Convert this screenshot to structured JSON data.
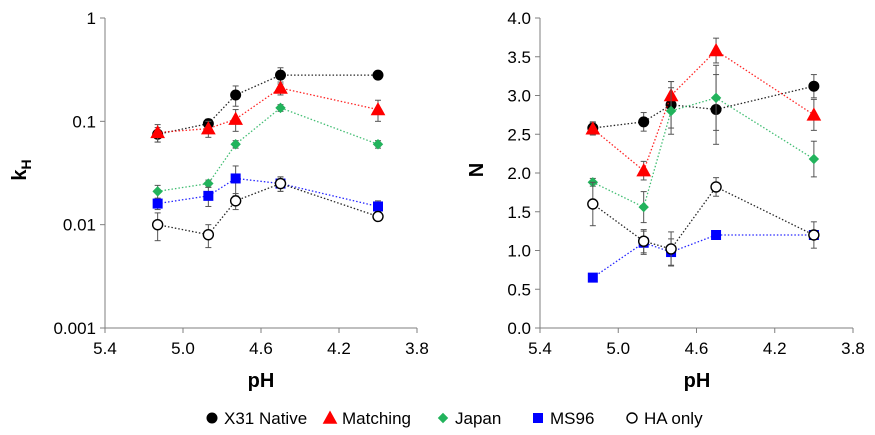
{
  "chart_data": [
    {
      "type": "scatter",
      "title": "",
      "xlabel": "pH",
      "ylabel": "kH",
      "ylabel_main": "k",
      "ylabel_sub": "H",
      "xlim": [
        5.4,
        3.8
      ],
      "x_reversed": true,
      "xticks": [
        "5.4",
        "5.0",
        "4.6",
        "4.2",
        "3.8"
      ],
      "ylim": [
        0.001,
        1
      ],
      "yscale": "log",
      "yticks": [
        "0.001",
        "0.01",
        "0.1",
        "1"
      ],
      "grid": false,
      "series": [
        {
          "name": "X31 Native",
          "color": "#000000",
          "marker": "circle",
          "filled": true,
          "x": [
            5.13,
            4.87,
            4.73,
            4.5,
            4.0
          ],
          "y": [
            0.075,
            0.095,
            0.18,
            0.28,
            0.28
          ],
          "err": [
            0.012,
            0.01,
            0.04,
            0.05,
            0.02
          ]
        },
        {
          "name": "Matching",
          "color": "#ff0000",
          "marker": "triangle",
          "filled": true,
          "x": [
            5.13,
            4.87,
            4.73,
            4.5,
            4.0
          ],
          "y": [
            0.078,
            0.085,
            0.105,
            0.21,
            0.13
          ],
          "err": [
            0.015,
            0.015,
            0.025,
            0.03,
            0.03
          ]
        },
        {
          "name": "Japan",
          "color": "#22b35c",
          "marker": "diamond",
          "filled": true,
          "x": [
            5.13,
            4.87,
            4.73,
            4.5,
            4.0
          ],
          "y": [
            0.021,
            0.025,
            0.06,
            0.135,
            0.06
          ],
          "err": [
            0.003,
            0.002,
            0.005,
            0.01,
            0.005
          ]
        },
        {
          "name": "MS96",
          "color": "#0000ff",
          "marker": "square",
          "filled": true,
          "x": [
            5.13,
            4.87,
            4.73,
            4.5,
            4.0
          ],
          "y": [
            0.016,
            0.019,
            0.028,
            0.025,
            0.015
          ],
          "err": [
            0.002,
            0.004,
            0.009,
            0.004,
            0.002
          ]
        },
        {
          "name": "HA only",
          "color": "#000000",
          "marker": "circle",
          "filled": false,
          "x": [
            5.13,
            4.87,
            4.73,
            4.5,
            4.0
          ],
          "y": [
            0.01,
            0.008,
            0.017,
            0.025,
            0.012
          ],
          "err": [
            0.003,
            0.002,
            0.003,
            0.004,
            0.001
          ]
        }
      ]
    },
    {
      "type": "scatter",
      "title": "",
      "xlabel": "pH",
      "ylabel": "N",
      "xlim": [
        5.4,
        3.8
      ],
      "x_reversed": true,
      "xticks": [
        "5.4",
        "5.0",
        "4.6",
        "4.2",
        "3.8"
      ],
      "ylim": [
        0,
        4
      ],
      "yscale": "linear",
      "yticks": [
        "0.0",
        "0.5",
        "1.0",
        "1.5",
        "2.0",
        "2.5",
        "3.0",
        "3.5",
        "4.0"
      ],
      "grid": false,
      "series": [
        {
          "name": "X31 Native",
          "color": "#000000",
          "marker": "circle",
          "filled": true,
          "x": [
            5.13,
            4.87,
            4.73,
            4.5,
            4.0
          ],
          "y": [
            2.58,
            2.66,
            2.88,
            2.82,
            3.12
          ],
          "err": [
            0.08,
            0.12,
            0.3,
            0.45,
            0.15
          ]
        },
        {
          "name": "Matching",
          "color": "#ff0000",
          "marker": "triangle",
          "filled": true,
          "x": [
            5.13,
            4.87,
            4.73,
            4.5,
            4.0
          ],
          "y": [
            2.57,
            2.03,
            3.0,
            3.58,
            2.75
          ],
          "err": [
            0.08,
            0.12,
            0.18,
            0.16,
            0.2
          ]
        },
        {
          "name": "Japan",
          "color": "#22b35c",
          "marker": "diamond",
          "filled": true,
          "x": [
            5.13,
            4.87,
            4.73,
            4.5,
            4.0
          ],
          "y": [
            1.88,
            1.56,
            2.8,
            2.97,
            2.18
          ],
          "err": [
            0.05,
            0.2,
            0.3,
            0.42,
            0.23
          ]
        },
        {
          "name": "MS96",
          "color": "#0000ff",
          "marker": "square",
          "filled": true,
          "x": [
            5.13,
            4.87,
            4.73,
            4.5,
            4.0
          ],
          "y": [
            0.65,
            1.1,
            0.98,
            1.2,
            1.2
          ],
          "err": [
            0.04,
            0.15,
            0.17,
            0.03,
            0.05
          ]
        },
        {
          "name": "HA only",
          "color": "#000000",
          "marker": "circle",
          "filled": false,
          "x": [
            5.13,
            4.87,
            4.73,
            4.5,
            4.0
          ],
          "y": [
            1.6,
            1.12,
            1.02,
            1.82,
            1.2
          ],
          "err": [
            0.28,
            0.15,
            0.22,
            0.12,
            0.17
          ]
        }
      ]
    }
  ],
  "legend": {
    "placement": "bottom-center",
    "entries": [
      {
        "label": "X31 Native",
        "color": "#000000",
        "marker": "circle",
        "filled": true
      },
      {
        "label": "Matching",
        "color": "#ff0000",
        "marker": "triangle",
        "filled": true
      },
      {
        "label": "Japan",
        "color": "#22b35c",
        "marker": "diamond",
        "filled": true
      },
      {
        "label": "MS96",
        "color": "#0000ff",
        "marker": "square",
        "filled": true
      },
      {
        "label": "HA only",
        "color": "#000000",
        "marker": "circle",
        "filled": false
      }
    ]
  }
}
